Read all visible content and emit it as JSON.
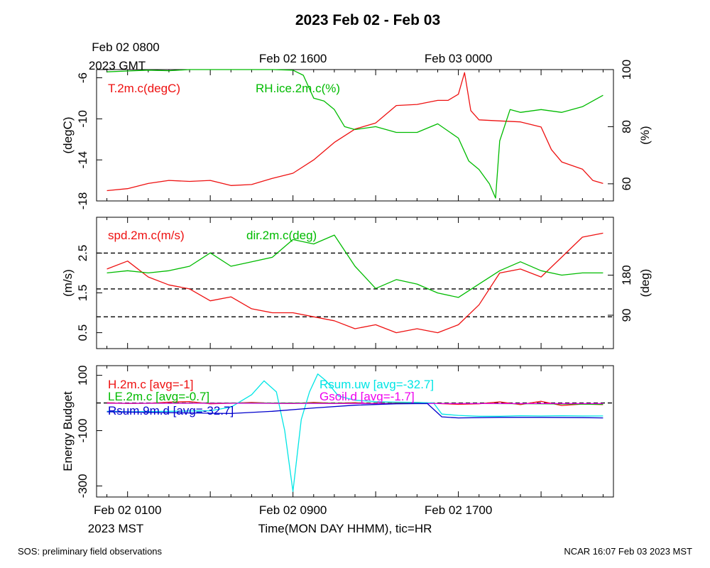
{
  "title": "2023 Feb 02 - Feb 03",
  "top_axis": {
    "ticks": [
      {
        "t": 0,
        "label": "Feb 02 0800"
      },
      {
        "t": 8,
        "label": "Feb 02 1600"
      },
      {
        "t": 16,
        "label": "Feb 03 0000"
      }
    ],
    "timezone": "2023 GMT"
  },
  "bottom_axis": {
    "ticks": [
      {
        "t": 0,
        "label": "Feb 02 0100"
      },
      {
        "t": 8,
        "label": "Feb 02 0900"
      },
      {
        "t": 16,
        "label": "Feb 02 1700"
      }
    ],
    "timezone": "2023 MST",
    "xlabel": "Time(MON DAY HHMM), tic=HR"
  },
  "footer": {
    "left": "SOS: preliminary field observations",
    "right": "NCAR 16:07 Feb 03 2023 MST"
  },
  "colors": {
    "red": "#ee1111",
    "green": "#00bb00",
    "cyan": "#00e5e5",
    "magenta": "#ee00ee",
    "blue": "#0000cc",
    "black": "#000000"
  },
  "chart_data": [
    {
      "type": "line",
      "x_range_hours": [
        -1.5,
        23.5
      ],
      "left_axis": {
        "label": "(degC)",
        "range": [
          -18,
          -5.2
        ],
        "ticks": [
          -6,
          -10,
          -14,
          -18
        ]
      },
      "right_axis": {
        "label": "(%)",
        "range": [
          54,
          100
        ],
        "ticks": [
          60,
          80,
          100
        ]
      },
      "series": [
        {
          "name": "T.2m.c(degC)",
          "color": "red",
          "axis": "left",
          "points": [
            [
              -1,
              -17
            ],
            [
              0,
              -16.8
            ],
            [
              1,
              -16.3
            ],
            [
              2,
              -16
            ],
            [
              3,
              -16.1
            ],
            [
              4,
              -16
            ],
            [
              5,
              -16.5
            ],
            [
              6,
              -16.4
            ],
            [
              7,
              -15.8
            ],
            [
              8,
              -15.3
            ],
            [
              9,
              -14
            ],
            [
              10,
              -12.3
            ],
            [
              11,
              -11
            ],
            [
              12,
              -10.4
            ],
            [
              13,
              -8.7
            ],
            [
              14,
              -8.6
            ],
            [
              15,
              -8.2
            ],
            [
              15.5,
              -8.2
            ],
            [
              16,
              -7.6
            ],
            [
              16.3,
              -5.5
            ],
            [
              16.6,
              -9.2
            ],
            [
              17,
              -10.1
            ],
            [
              18,
              -10.2
            ],
            [
              19,
              -10.3
            ],
            [
              20,
              -10.8
            ],
            [
              20.5,
              -13
            ],
            [
              21,
              -14.2
            ],
            [
              22,
              -14.9
            ],
            [
              22.5,
              -16
            ],
            [
              23,
              -16.3
            ]
          ]
        },
        {
          "name": "RH.ice.2m.c(%)",
          "color": "green",
          "axis": "right",
          "points": [
            [
              -1,
              99.2
            ],
            [
              0,
              99.5
            ],
            [
              1,
              99.8
            ],
            [
              2,
              99.6
            ],
            [
              3,
              100
            ],
            [
              4,
              100
            ],
            [
              5,
              100
            ],
            [
              6,
              100
            ],
            [
              7,
              100
            ],
            [
              8,
              99.8
            ],
            [
              8.5,
              98
            ],
            [
              9,
              90
            ],
            [
              9.5,
              89
            ],
            [
              10,
              86
            ],
            [
              10.5,
              80
            ],
            [
              11,
              79
            ],
            [
              12,
              80
            ],
            [
              13,
              78
            ],
            [
              14,
              78
            ],
            [
              15,
              81
            ],
            [
              16,
              76
            ],
            [
              16.5,
              68
            ],
            [
              17,
              65
            ],
            [
              17.5,
              60
            ],
            [
              17.8,
              55
            ],
            [
              18,
              75
            ],
            [
              18.5,
              86
            ],
            [
              19,
              85
            ],
            [
              20,
              86
            ],
            [
              21,
              85
            ],
            [
              22,
              87
            ],
            [
              23,
              91
            ]
          ]
        }
      ]
    },
    {
      "type": "line",
      "x_range_hours": [
        -1.5,
        23.5
      ],
      "left_axis": {
        "label": "(m/s)",
        "range": [
          0.1,
          3.4
        ],
        "ticks": [
          0.5,
          1.5,
          2.5
        ]
      },
      "right_axis": {
        "label": "(deg)",
        "range": [
          15,
          310
        ],
        "ticks": [
          90,
          180
        ]
      },
      "reference_lines": [
        2.5,
        1.6,
        0.9
      ],
      "series": [
        {
          "name": "spd.2m.c(m/s)",
          "color": "red",
          "axis": "left",
          "points": [
            [
              -1,
              2.1
            ],
            [
              0,
              2.3
            ],
            [
              1,
              1.9
            ],
            [
              2,
              1.7
            ],
            [
              3,
              1.6
            ],
            [
              4,
              1.3
            ],
            [
              5,
              1.4
            ],
            [
              6,
              1.1
            ],
            [
              7,
              1.0
            ],
            [
              8,
              1.0
            ],
            [
              9,
              0.9
            ],
            [
              10,
              0.8
            ],
            [
              11,
              0.6
            ],
            [
              12,
              0.7
            ],
            [
              13,
              0.5
            ],
            [
              14,
              0.6
            ],
            [
              15,
              0.5
            ],
            [
              16,
              0.7
            ],
            [
              17,
              1.2
            ],
            [
              18,
              2.0
            ],
            [
              19,
              2.1
            ],
            [
              20,
              1.9
            ],
            [
              21,
              2.4
            ],
            [
              22,
              2.9
            ],
            [
              23,
              3.0
            ]
          ]
        },
        {
          "name": "dir.2m.c(deg)",
          "color": "green",
          "axis": "right",
          "points": [
            [
              -1,
              185
            ],
            [
              0,
              190
            ],
            [
              1,
              185
            ],
            [
              2,
              190
            ],
            [
              3,
              200
            ],
            [
              4,
              230
            ],
            [
              5,
              200
            ],
            [
              6,
              210
            ],
            [
              7,
              220
            ],
            [
              8,
              260
            ],
            [
              9,
              250
            ],
            [
              10,
              270
            ],
            [
              11,
              200
            ],
            [
              12,
              150
            ],
            [
              13,
              170
            ],
            [
              14,
              160
            ],
            [
              15,
              140
            ],
            [
              16,
              130
            ],
            [
              17,
              160
            ],
            [
              18,
              190
            ],
            [
              19,
              210
            ],
            [
              20,
              190
            ],
            [
              21,
              180
            ],
            [
              22,
              185
            ],
            [
              23,
              185
            ]
          ]
        }
      ]
    },
    {
      "type": "line",
      "x_range_hours": [
        -1.5,
        23.5
      ],
      "left_axis": {
        "label": "Energy Budget",
        "range": [
          -340,
          135
        ],
        "ticks": [
          100,
          -100,
          -300
        ]
      },
      "reference_lines": [
        0
      ],
      "series": [
        {
          "name": "H.2m.c [avg=-1]",
          "color": "red",
          "points": [
            [
              -1,
              1
            ],
            [
              0,
              -2
            ],
            [
              1,
              -1
            ],
            [
              2,
              3
            ],
            [
              3,
              5
            ],
            [
              4,
              -3
            ],
            [
              5,
              -1
            ],
            [
              6,
              2
            ],
            [
              7,
              -1
            ],
            [
              8,
              -2
            ],
            [
              9,
              2
            ],
            [
              10,
              -1
            ],
            [
              11,
              1
            ],
            [
              12,
              -3
            ],
            [
              13,
              0
            ],
            [
              14,
              2
            ],
            [
              15,
              -2
            ],
            [
              16,
              -5
            ],
            [
              17,
              -3
            ],
            [
              18,
              4
            ],
            [
              19,
              -6
            ],
            [
              20,
              6
            ],
            [
              21,
              -9
            ],
            [
              22,
              -4
            ],
            [
              23,
              -6
            ]
          ]
        },
        {
          "name": "LE.2m.c [avg=-0.7]",
          "color": "green",
          "points": [
            [
              -1,
              -1
            ],
            [
              2,
              -1
            ],
            [
              5,
              0
            ],
            [
              8,
              0
            ],
            [
              11,
              -1
            ],
            [
              14,
              -1
            ],
            [
              17,
              -2
            ],
            [
              20,
              -3
            ],
            [
              23,
              -5
            ]
          ]
        },
        {
          "name": "Rsum.uw [avg=-32.7]",
          "color": "cyan",
          "points": [
            [
              -1,
              -30
            ],
            [
              0,
              -32
            ],
            [
              2,
              -30
            ],
            [
              4,
              -28
            ],
            [
              5,
              -15
            ],
            [
              6,
              30
            ],
            [
              6.6,
              80
            ],
            [
              7.2,
              40
            ],
            [
              7.6,
              -100
            ],
            [
              8.0,
              -320
            ],
            [
              8.4,
              -60
            ],
            [
              8.8,
              40
            ],
            [
              9.2,
              105
            ],
            [
              9.6,
              80
            ],
            [
              10.2,
              25
            ],
            [
              11,
              10
            ],
            [
              12,
              5
            ],
            [
              13,
              3
            ],
            [
              14,
              2
            ],
            [
              14.8,
              0
            ],
            [
              15.2,
              -40
            ],
            [
              16,
              -45
            ],
            [
              17,
              -48
            ],
            [
              18,
              -48
            ],
            [
              19,
              -46
            ],
            [
              20,
              -47
            ],
            [
              21,
              -46
            ],
            [
              22,
              -47
            ],
            [
              23,
              -47
            ]
          ]
        },
        {
          "name": "Gsoil.d [avg=-1.7]",
          "color": "magenta",
          "points": [
            [
              -1,
              -1
            ],
            [
              5,
              -1
            ],
            [
              10,
              -2
            ],
            [
              15,
              -2
            ],
            [
              20,
              -2
            ],
            [
              23,
              -2
            ]
          ]
        },
        {
          "name": "Rsum.9m.d [avg=-32.7]",
          "color": "blue",
          "points": [
            [
              -1,
              -32
            ],
            [
              1,
              -34
            ],
            [
              3,
              -36
            ],
            [
              5,
              -38
            ],
            [
              7,
              -30
            ],
            [
              9,
              -18
            ],
            [
              11,
              -8
            ],
            [
              13,
              -3
            ],
            [
              14.5,
              -2
            ],
            [
              15.2,
              -50
            ],
            [
              16,
              -54
            ],
            [
              18,
              -52
            ],
            [
              20,
              -52
            ],
            [
              22,
              -53
            ],
            [
              23,
              -54
            ]
          ]
        }
      ]
    }
  ]
}
